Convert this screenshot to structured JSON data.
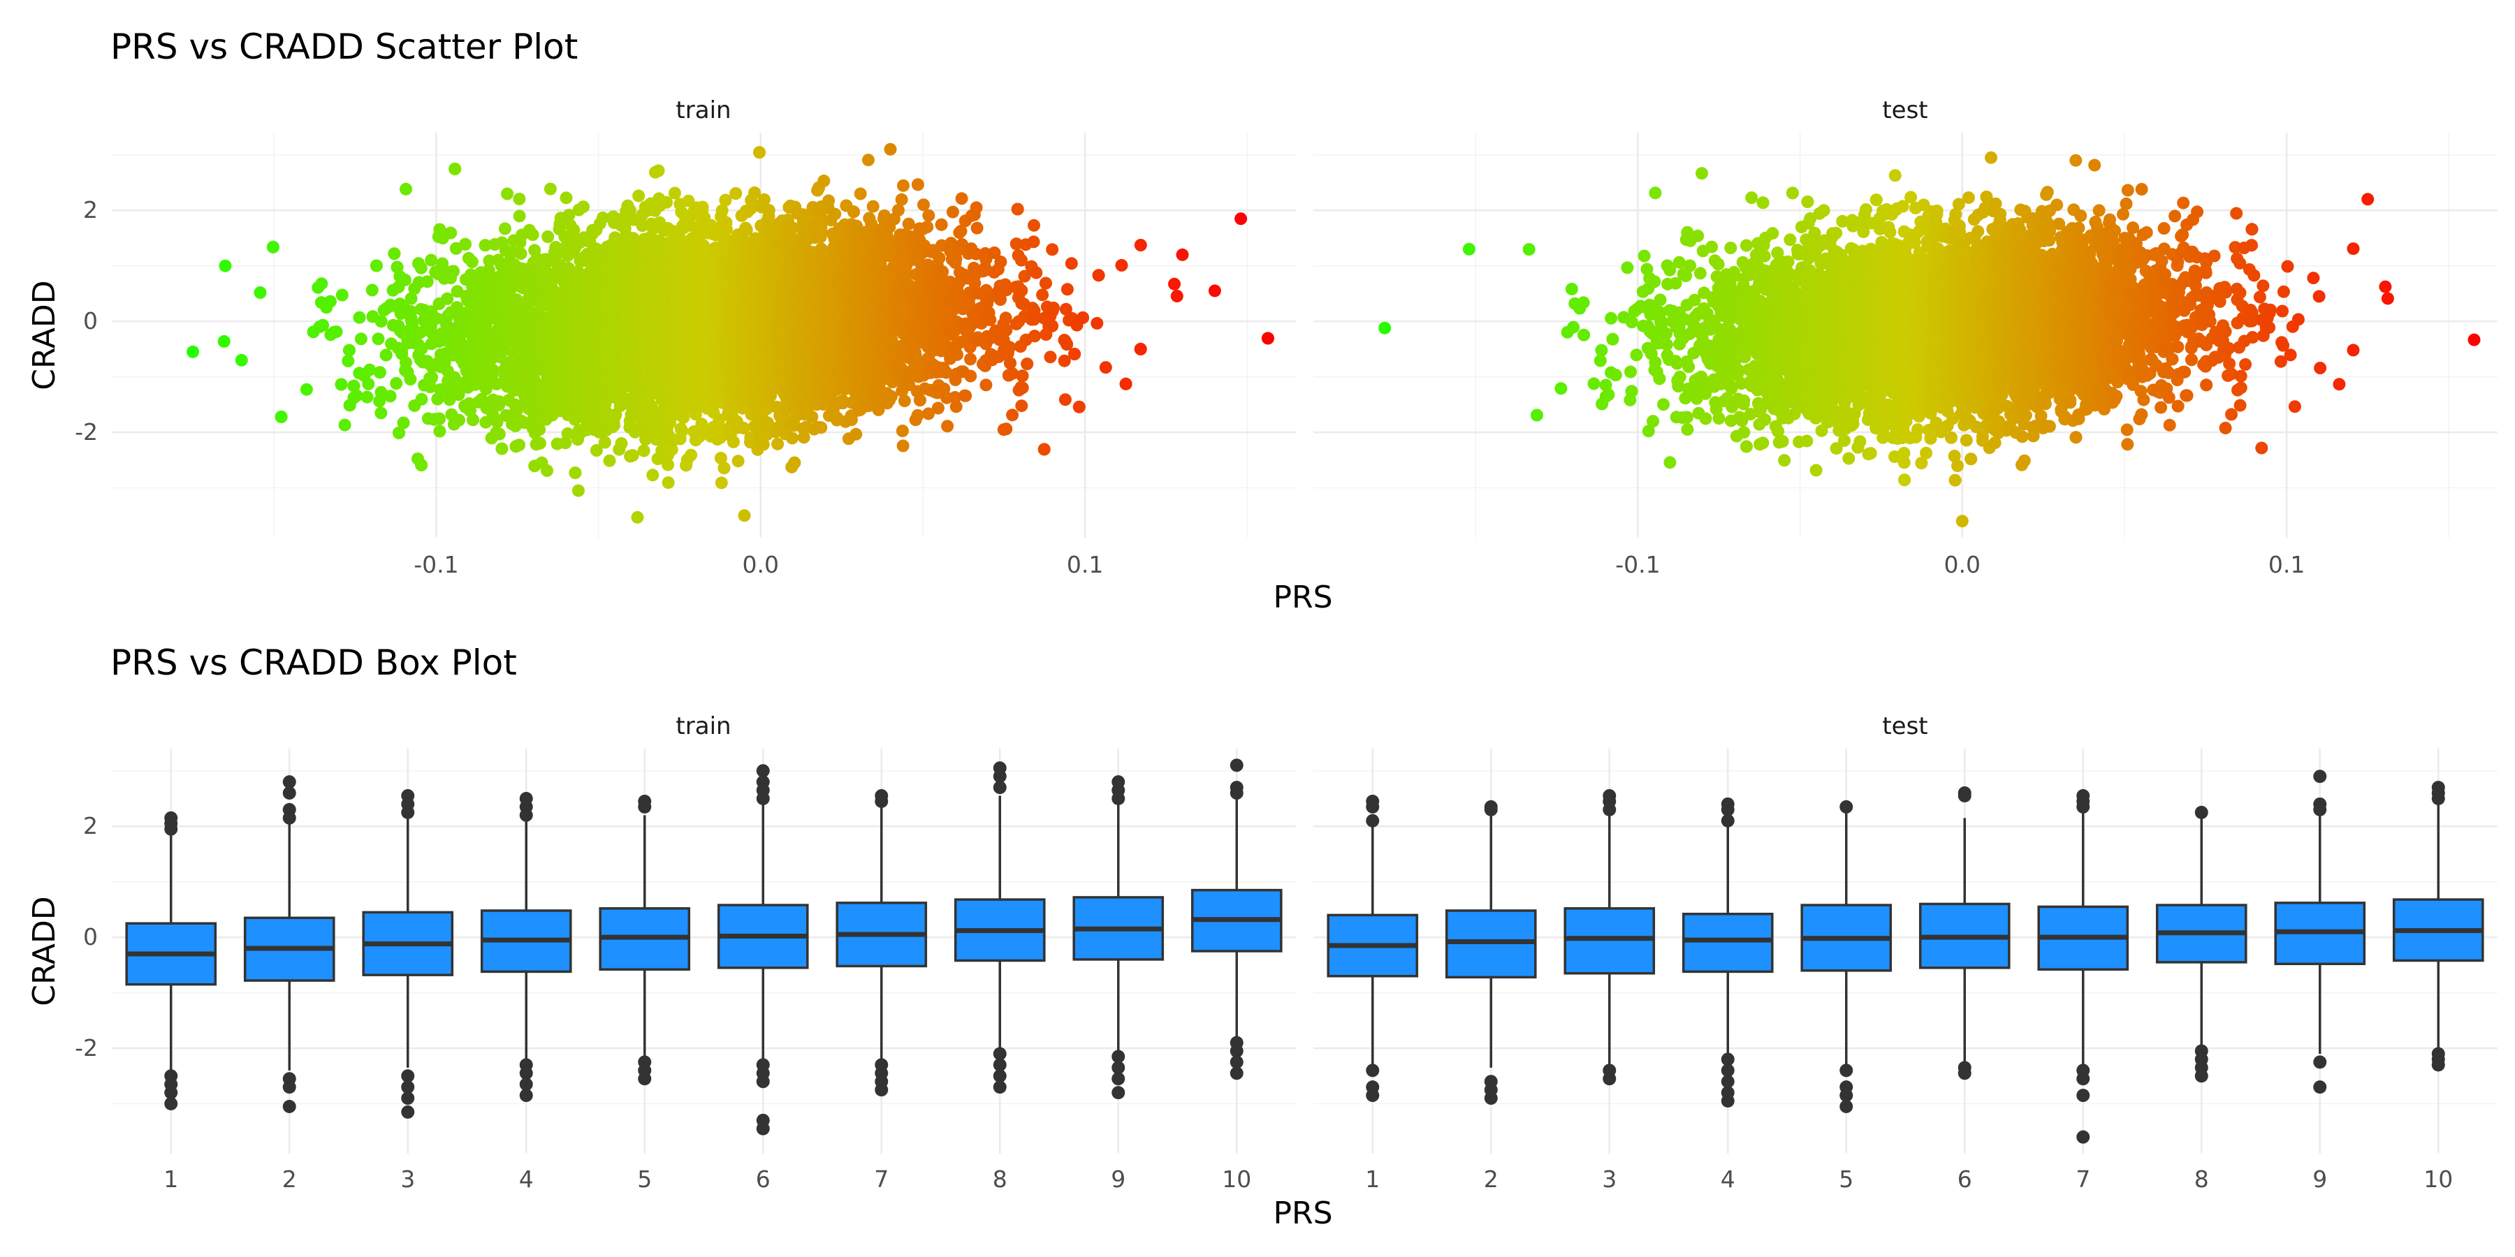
{
  "colors": {
    "low": "#22ff00",
    "mid": "#cccc00",
    "high": "#ff0000",
    "box_fill": "#1e90ff",
    "box_line": "#333333",
    "outlier": "#333333"
  },
  "chart_data": [
    {
      "type": "scatter",
      "title": "PRS vs CRADD Scatter Plot",
      "xlabel": "PRS",
      "ylabel": "CRADD",
      "xlim": [
        -0.2,
        0.165
      ],
      "ylim": [
        -3.9,
        3.4
      ],
      "xticks": [
        -0.1,
        0.0,
        0.1
      ],
      "xtick_labels": [
        "-0.1",
        "0.0",
        "0.1"
      ],
      "yticks": [
        -2,
        0,
        2
      ],
      "ytick_labels": [
        "-2",
        "0",
        "2"
      ],
      "grid": true,
      "color_by": "PRS",
      "panels": [
        {
          "name": "train",
          "n_points": 60000,
          "center": [
            -0.015,
            0.0
          ],
          "spread": [
            0.04,
            0.85
          ],
          "extreme_points": [
            [
              0.148,
              1.85
            ],
            [
              0.14,
              0.55
            ],
            [
              0.13,
              1.2
            ],
            [
              -0.175,
              -0.55
            ],
            [
              -0.165,
              1.0
            ],
            [
              -0.16,
              -0.7
            ],
            [
              0.04,
              3.1
            ],
            [
              -0.005,
              -3.5
            ]
          ]
        },
        {
          "name": "test",
          "n_points": 20000,
          "center": [
            -0.005,
            -0.05
          ],
          "spread": [
            0.038,
            0.83
          ],
          "extreme_points": [
            [
              0.125,
              2.2
            ],
            [
              -0.178,
              -0.12
            ],
            [
              -0.152,
              1.3
            ],
            [
              0.11,
              0.45
            ],
            [
              0.0,
              -3.6
            ],
            [
              0.035,
              2.9
            ]
          ]
        }
      ]
    },
    {
      "type": "box",
      "title": "PRS vs CRADD Box Plot",
      "xlabel": "PRS",
      "ylabel": "CRADD",
      "ylim": [
        -3.9,
        3.4
      ],
      "yticks": [
        -2,
        0,
        2
      ],
      "ytick_labels": [
        "-2",
        "0",
        "2"
      ],
      "grid": true,
      "categories": [
        "1",
        "2",
        "3",
        "4",
        "5",
        "6",
        "7",
        "8",
        "9",
        "10"
      ],
      "panels": [
        {
          "name": "train",
          "boxes": [
            {
              "q1": -0.85,
              "median": -0.3,
              "q3": 0.25,
              "whisker_low": -2.45,
              "whisker_high": 1.85,
              "outliers": [
                2.15,
                2.05,
                1.95,
                -2.5,
                -2.65,
                -2.8,
                -3.0
              ]
            },
            {
              "q1": -0.78,
              "median": -0.2,
              "q3": 0.35,
              "whisker_low": -2.4,
              "whisker_high": 2.05,
              "outliers": [
                2.8,
                2.6,
                2.3,
                2.15,
                -2.55,
                -2.7,
                -3.05
              ]
            },
            {
              "q1": -0.68,
              "median": -0.12,
              "q3": 0.45,
              "whisker_low": -2.35,
              "whisker_high": 2.15,
              "outliers": [
                2.55,
                2.4,
                2.25,
                -2.5,
                -2.7,
                -2.9,
                -3.15
              ]
            },
            {
              "q1": -0.62,
              "median": -0.05,
              "q3": 0.48,
              "whisker_low": -2.2,
              "whisker_high": 2.15,
              "outliers": [
                2.5,
                2.35,
                2.2,
                -2.3,
                -2.45,
                -2.65,
                -2.85
              ]
            },
            {
              "q1": -0.58,
              "median": 0.0,
              "q3": 0.52,
              "whisker_low": -2.15,
              "whisker_high": 2.2,
              "outliers": [
                2.45,
                2.35,
                -2.25,
                -2.4,
                -2.55
              ]
            },
            {
              "q1": -0.55,
              "median": 0.02,
              "q3": 0.58,
              "whisker_low": -2.2,
              "whisker_high": 2.4,
              "outliers": [
                3.0,
                2.8,
                2.65,
                2.5,
                -2.3,
                -2.45,
                -2.6,
                -3.3,
                -3.45
              ]
            },
            {
              "q1": -0.52,
              "median": 0.05,
              "q3": 0.62,
              "whisker_low": -2.2,
              "whisker_high": 2.4,
              "outliers": [
                2.55,
                2.45,
                -2.3,
                -2.45,
                -2.6,
                -2.75
              ]
            },
            {
              "q1": -0.42,
              "median": 0.12,
              "q3": 0.68,
              "whisker_low": -2.05,
              "whisker_high": 2.55,
              "outliers": [
                3.05,
                2.9,
                2.7,
                -2.1,
                -2.3,
                -2.5,
                -2.7
              ]
            },
            {
              "q1": -0.4,
              "median": 0.15,
              "q3": 0.72,
              "whisker_low": -2.05,
              "whisker_high": 2.45,
              "outliers": [
                2.8,
                2.65,
                2.5,
                -2.15,
                -2.35,
                -2.55,
                -2.8
              ]
            },
            {
              "q1": -0.25,
              "median": 0.32,
              "q3": 0.85,
              "whisker_low": -1.8,
              "whisker_high": 2.5,
              "outliers": [
                3.1,
                2.7,
                2.6,
                -1.9,
                -2.05,
                -2.25,
                -2.45
              ]
            }
          ]
        },
        {
          "name": "test",
          "boxes": [
            {
              "q1": -0.7,
              "median": -0.15,
              "q3": 0.4,
              "whisker_low": -2.3,
              "whisker_high": 2.05,
              "outliers": [
                2.45,
                2.35,
                2.1,
                -2.4,
                -2.7,
                -2.85
              ]
            },
            {
              "q1": -0.72,
              "median": -0.08,
              "q3": 0.48,
              "whisker_low": -2.35,
              "whisker_high": 2.25,
              "outliers": [
                2.35,
                2.3,
                -2.6,
                -2.75,
                -2.9
              ]
            },
            {
              "q1": -0.65,
              "median": -0.02,
              "q3": 0.52,
              "whisker_low": -2.3,
              "whisker_high": 2.25,
              "outliers": [
                2.55,
                2.45,
                2.3,
                -2.4,
                -2.55
              ]
            },
            {
              "q1": -0.62,
              "median": -0.05,
              "q3": 0.42,
              "whisker_low": -2.15,
              "whisker_high": 2.0,
              "outliers": [
                2.4,
                2.3,
                2.1,
                -2.2,
                -2.4,
                -2.6,
                -2.8,
                -2.95
              ]
            },
            {
              "q1": -0.6,
              "median": -0.02,
              "q3": 0.58,
              "whisker_low": -2.3,
              "whisker_high": 2.3,
              "outliers": [
                2.35,
                -2.4,
                -2.7,
                -2.85,
                -3.05
              ]
            },
            {
              "q1": -0.55,
              "median": 0.0,
              "q3": 0.6,
              "whisker_low": -2.3,
              "whisker_high": 2.15,
              "outliers": [
                2.6,
                2.55,
                -2.35,
                -2.45
              ]
            },
            {
              "q1": -0.58,
              "median": 0.0,
              "q3": 0.55,
              "whisker_low": -2.3,
              "whisker_high": 2.3,
              "outliers": [
                2.55,
                2.45,
                2.35,
                -2.4,
                -2.55,
                -2.85,
                -3.6
              ]
            },
            {
              "q1": -0.45,
              "median": 0.08,
              "q3": 0.58,
              "whisker_low": -2.0,
              "whisker_high": 2.2,
              "outliers": [
                2.25,
                -2.05,
                -2.2,
                -2.35,
                -2.5
              ]
            },
            {
              "q1": -0.48,
              "median": 0.1,
              "q3": 0.62,
              "whisker_low": -2.1,
              "whisker_high": 2.2,
              "outliers": [
                2.9,
                2.4,
                2.3,
                -2.25,
                -2.7
              ]
            },
            {
              "q1": -0.42,
              "median": 0.12,
              "q3": 0.68,
              "whisker_low": -2.05,
              "whisker_high": 2.4,
              "outliers": [
                2.7,
                2.6,
                2.5,
                -2.1,
                -2.2,
                -2.3
              ]
            }
          ]
        }
      ]
    }
  ]
}
